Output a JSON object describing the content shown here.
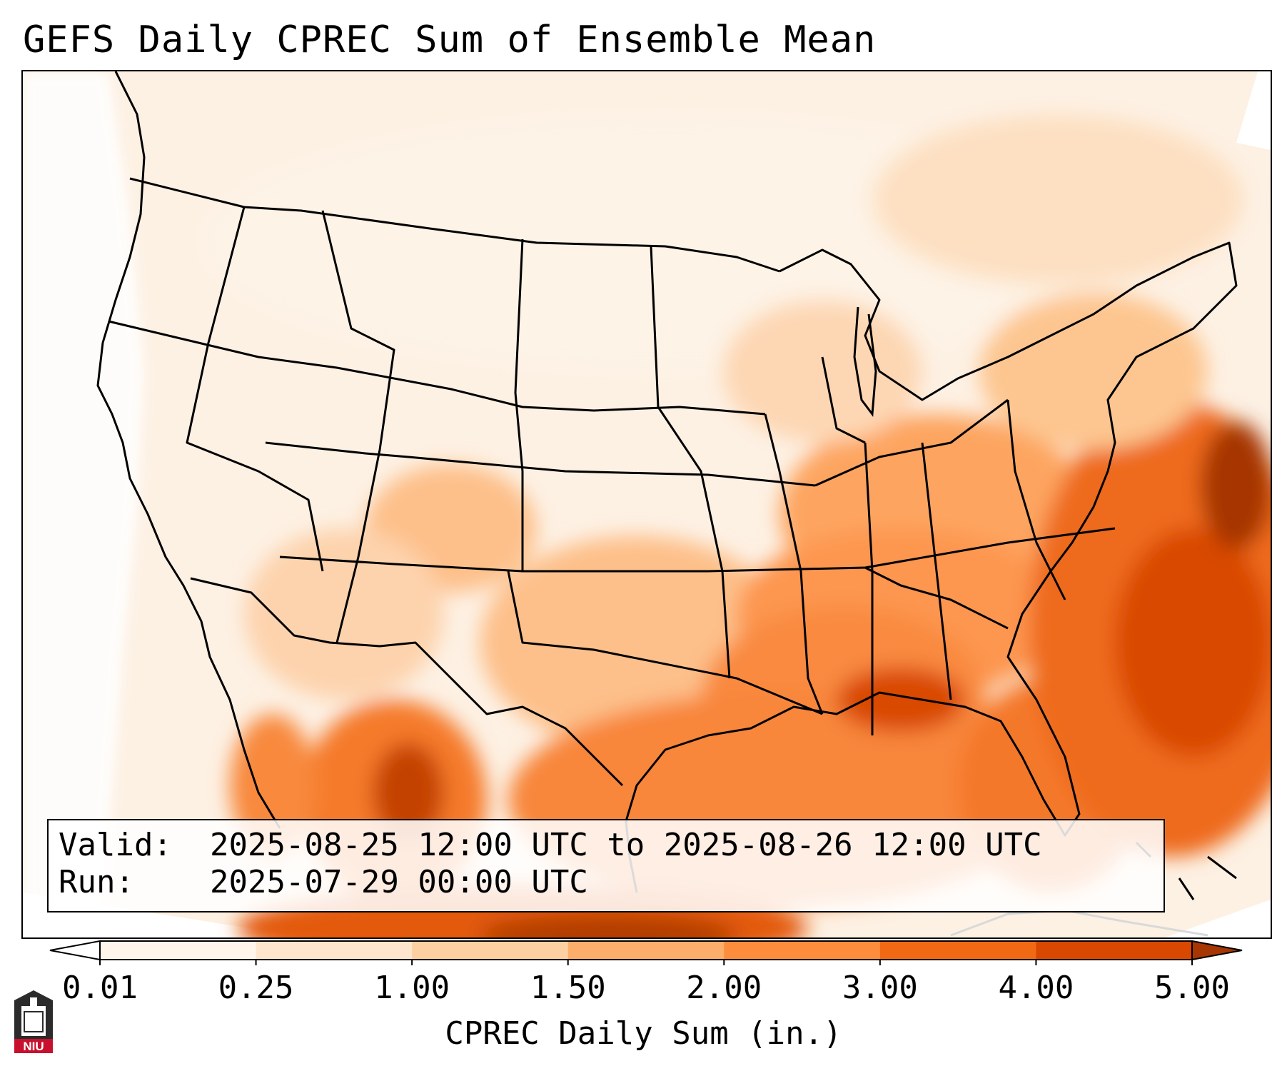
{
  "title": "GEFS Daily CPREC Sum of Ensemble Mean",
  "info": {
    "valid_label": "Valid:",
    "valid_value": "2025-08-25 12:00 UTC to 2025-08-26 12:00 UTC",
    "run_label": "Run:",
    "run_value": "2025-07-29 00:00 UTC"
  },
  "colorbar": {
    "label": "CPREC Daily Sum (in.)",
    "ticks": [
      "0.01",
      "0.25",
      "1.00",
      "1.50",
      "2.00",
      "3.00",
      "4.00",
      "5.00"
    ],
    "colors": [
      "#fff5eb",
      "#fee6ce",
      "#fdd0a2",
      "#fdae6b",
      "#fd8d3c",
      "#f16913",
      "#d94801",
      "#a63603"
    ],
    "under_color": "#ffffff",
    "over_color": "#a63603",
    "extend": "both"
  },
  "map": {
    "region": "CONUS, northern Mexico, Gulf of Mexico and western Atlantic",
    "ocean_color": "#fdf1e4",
    "land_color": "#fdf3e8",
    "precip_areas": [
      {
        "area": "Gulf of Mexico / Gulf Coast",
        "level": "2.00-3.00"
      },
      {
        "area": "Western Atlantic off Carolinas",
        "level": "3.00-5.00"
      },
      {
        "area": "Northern Florida panhandle",
        "level": "3.00-4.00"
      },
      {
        "area": "Sierra Madre Occidental, Mexico",
        "level": "3.00-4.00"
      },
      {
        "area": "Ohio / Tennessee Valley",
        "level": "1.50-2.00"
      },
      {
        "area": "Southern Plains",
        "level": "1.00-2.00"
      },
      {
        "area": "Colorado Rockies",
        "level": "1.00-1.50"
      },
      {
        "area": "Northern Plains / West",
        "level": "0.01-0.25"
      }
    ]
  },
  "logo": {
    "text": "NIU"
  }
}
